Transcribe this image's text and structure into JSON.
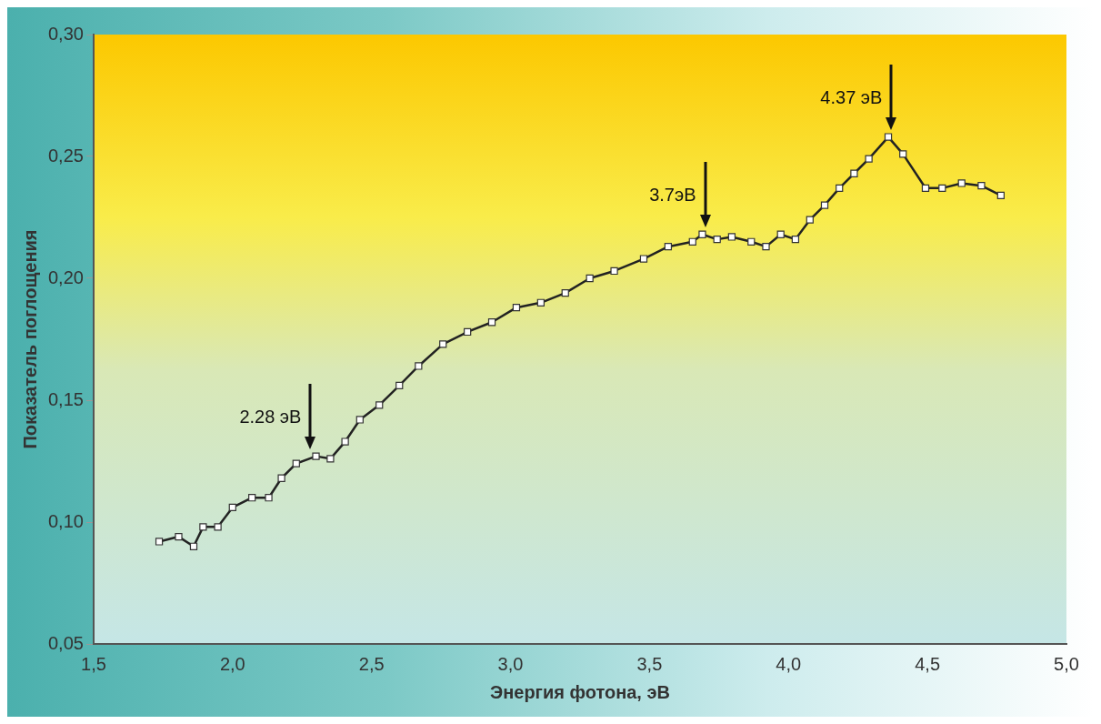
{
  "chart_data": {
    "type": "line",
    "xlabel": "Энергия фотона, эВ",
    "ylabel": "Показатель поглощения",
    "xlim": [
      1.5,
      5.0
    ],
    "xticks": [
      {
        "value": 1.5,
        "label": "1,5"
      },
      {
        "value": 2.0,
        "label": "2,0"
      },
      {
        "value": 2.5,
        "label": "2,5"
      },
      {
        "value": 3.0,
        "label": "3,0"
      },
      {
        "value": 3.5,
        "label": "3,5"
      },
      {
        "value": 4.0,
        "label": "4,0"
      },
      {
        "value": 4.5,
        "label": "4,5"
      },
      {
        "value": 5.0,
        "label": "5,0"
      }
    ],
    "ylim": [
      0.05,
      0.3
    ],
    "yticks": [
      {
        "value": 0.05,
        "label": "0,05"
      },
      {
        "value": 0.1,
        "label": "0,10"
      },
      {
        "value": 0.15,
        "label": "0,15"
      },
      {
        "value": 0.2,
        "label": "0,20"
      },
      {
        "value": 0.25,
        "label": "0,25"
      },
      {
        "value": 0.3,
        "label": "0,30"
      }
    ],
    "x": [
      1.736,
      1.806,
      1.86,
      1.894,
      1.947,
      2.0,
      2.07,
      2.13,
      2.176,
      2.229,
      2.3,
      2.352,
      2.405,
      2.458,
      2.528,
      2.6,
      2.669,
      2.757,
      2.845,
      2.933,
      3.021,
      3.109,
      3.197,
      3.285,
      3.373,
      3.479,
      3.567,
      3.655,
      3.69,
      3.743,
      3.796,
      3.866,
      3.919,
      3.972,
      4.025,
      4.077,
      4.13,
      4.183,
      4.236,
      4.289,
      4.359,
      4.412,
      4.493,
      4.553,
      4.623,
      4.694,
      4.764
    ],
    "series": [
      {
        "color": "#222222",
        "values": [
          0.092,
          0.094,
          0.09,
          0.098,
          0.098,
          0.106,
          0.11,
          0.11,
          0.118,
          0.124,
          0.127,
          0.126,
          0.133,
          0.142,
          0.148,
          0.156,
          0.164,
          0.173,
          0.178,
          0.182,
          0.188,
          0.19,
          0.194,
          0.2,
          0.203,
          0.208,
          0.213,
          0.215,
          0.218,
          0.216,
          0.217,
          0.215,
          0.213,
          0.218,
          0.216,
          0.224,
          0.23,
          0.237,
          0.243,
          0.249,
          0.258,
          0.251,
          0.237,
          0.237,
          0.239,
          0.238,
          0.234
        ]
      }
    ],
    "marker": "square",
    "grid": false,
    "legend": false,
    "annotations": [
      {
        "text": "2.28 эВ",
        "x": 2.28,
        "y": 0.127
      },
      {
        "text": "3.7эВ",
        "x": 3.7,
        "y": 0.218
      },
      {
        "text": "4.37 эВ",
        "x": 4.37,
        "y": 0.258
      }
    ]
  }
}
